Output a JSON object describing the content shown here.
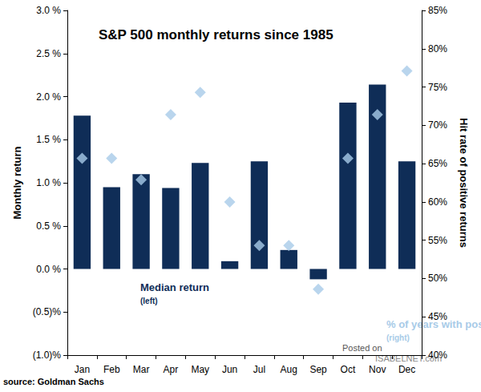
{
  "chart_data": {
    "type": "bar",
    "title": "S&P 500 monthly returns since 1985",
    "categories": [
      "Jan",
      "Feb",
      "Mar",
      "Apr",
      "May",
      "Jun",
      "Jul",
      "Aug",
      "Sep",
      "Oct",
      "Nov",
      "Dec"
    ],
    "series": [
      {
        "name": "Median return",
        "type": "bar",
        "color": "#0f2d57",
        "values": [
          1.78,
          0.95,
          1.1,
          0.94,
          1.23,
          0.09,
          1.25,
          0.22,
          -0.12,
          1.93,
          2.14,
          1.25
        ]
      },
      {
        "name": "% of years with positive return",
        "type": "scatter",
        "marker": "diamond",
        "axis": "y2",
        "color": "#a8cbe8",
        "values": [
          65.7,
          65.7,
          62.9,
          71.4,
          74.3,
          60.0,
          54.3,
          54.3,
          48.6,
          65.7,
          71.4,
          77.1
        ]
      }
    ],
    "annotations": [
      "(left)",
      "(right)"
    ],
    "ylabel": "Monthly return",
    "y2label": "Hit rate of positive returns",
    "ylim": [
      -1.0,
      3.0
    ],
    "yticks": [
      {
        "value": -1.0,
        "label": "(1.0)%"
      },
      {
        "value": -0.5,
        "label": "(0.5)%"
      },
      {
        "value": 0.0,
        "label": "0.0 %"
      },
      {
        "value": 0.5,
        "label": "0.5 %"
      },
      {
        "value": 1.0,
        "label": "1.0 %"
      },
      {
        "value": 1.5,
        "label": "1.5 %"
      },
      {
        "value": 2.0,
        "label": "2.0 %"
      },
      {
        "value": 2.5,
        "label": "2.5 %"
      },
      {
        "value": 3.0,
        "label": "3.0 %"
      }
    ],
    "y2lim": [
      40,
      85
    ],
    "y2ticks": [
      {
        "value": 40,
        "label": "40%"
      },
      {
        "value": 45,
        "label": "45%"
      },
      {
        "value": 50,
        "label": "50%"
      },
      {
        "value": 55,
        "label": "55%"
      },
      {
        "value": 60,
        "label": "60%"
      },
      {
        "value": 65,
        "label": "65%"
      },
      {
        "value": 70,
        "label": "70%"
      },
      {
        "value": 75,
        "label": "75%"
      },
      {
        "value": 80,
        "label": "80%"
      },
      {
        "value": 85,
        "label": "85%"
      }
    ],
    "source": "source: Goldman Sachs",
    "watermark": [
      "Posted on",
      "ISABELNET.com"
    ],
    "grid": false
  }
}
